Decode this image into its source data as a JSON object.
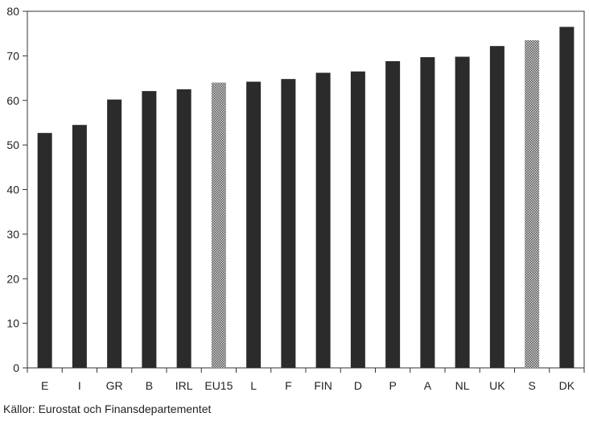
{
  "chart_data": {
    "type": "bar",
    "categories": [
      "E",
      "I",
      "GR",
      "B",
      "IRL",
      "EU15",
      "L",
      "F",
      "FIN",
      "D",
      "P",
      "A",
      "NL",
      "UK",
      "S",
      "DK"
    ],
    "values": [
      52.7,
      54.5,
      60.2,
      62.1,
      62.5,
      64.0,
      64.2,
      64.8,
      66.2,
      66.5,
      68.8,
      69.7,
      69.8,
      72.2,
      73.5,
      76.5
    ],
    "highlighted": [
      "EU15",
      "S"
    ],
    "ylim": [
      0,
      80
    ],
    "yticks": [
      0,
      10,
      20,
      30,
      40,
      50,
      60,
      70,
      80
    ],
    "colors": {
      "bar": "#2b2b2b",
      "highlight": "#9a9a9a",
      "axis": "#333333"
    },
    "title": "",
    "xlabel": "",
    "ylabel": ""
  },
  "source_text": "Källor:  Eurostat och Finansdepartementet"
}
